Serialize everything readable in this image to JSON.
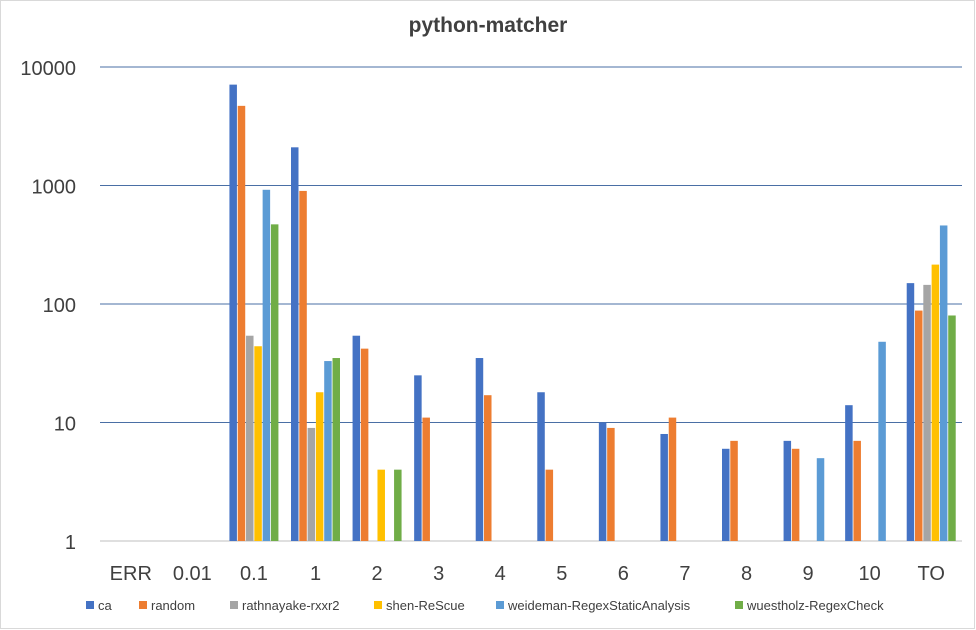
{
  "chart_data": {
    "type": "bar",
    "title": "python-matcher",
    "xlabel": "",
    "ylabel": "",
    "yscale": "log",
    "ylim": [
      1,
      10000
    ],
    "yticks": [
      "1",
      "10",
      "100",
      "1000",
      "10000"
    ],
    "grid": true,
    "legend_position": "bottom",
    "categories": [
      "ERR",
      "0.01",
      "0.1",
      "1",
      "2",
      "3",
      "4",
      "5",
      "6",
      "7",
      "8",
      "9",
      "10",
      "TO"
    ],
    "series": [
      {
        "name": "ca",
        "color": "#4472c4",
        "values": [
          null,
          null,
          7100,
          2100,
          54,
          25,
          35,
          18,
          10,
          8,
          6,
          7,
          14,
          150
        ]
      },
      {
        "name": "random",
        "color": "#ed7d31",
        "values": [
          null,
          null,
          4700,
          900,
          42,
          11,
          17,
          4,
          9,
          11,
          7,
          6,
          7,
          88
        ]
      },
      {
        "name": "rathnayake-rxxr2",
        "color": "#a5a5a5",
        "values": [
          null,
          null,
          54,
          9,
          null,
          null,
          null,
          null,
          null,
          null,
          null,
          null,
          null,
          145
        ]
      },
      {
        "name": "shen-ReScue",
        "color": "#ffc000",
        "values": [
          null,
          null,
          44,
          18,
          4,
          null,
          null,
          null,
          null,
          null,
          null,
          null,
          null,
          215
        ]
      },
      {
        "name": "weideman-RegexStaticAnalysis",
        "color": "#5b9bd5",
        "values": [
          null,
          null,
          920,
          33,
          null,
          null,
          null,
          null,
          null,
          null,
          null,
          5,
          48,
          460
        ]
      },
      {
        "name": "wuestholz-RegexCheck",
        "color": "#70ad47",
        "values": [
          null,
          null,
          470,
          35,
          4,
          null,
          null,
          null,
          null,
          null,
          null,
          null,
          null,
          80
        ]
      }
    ]
  }
}
